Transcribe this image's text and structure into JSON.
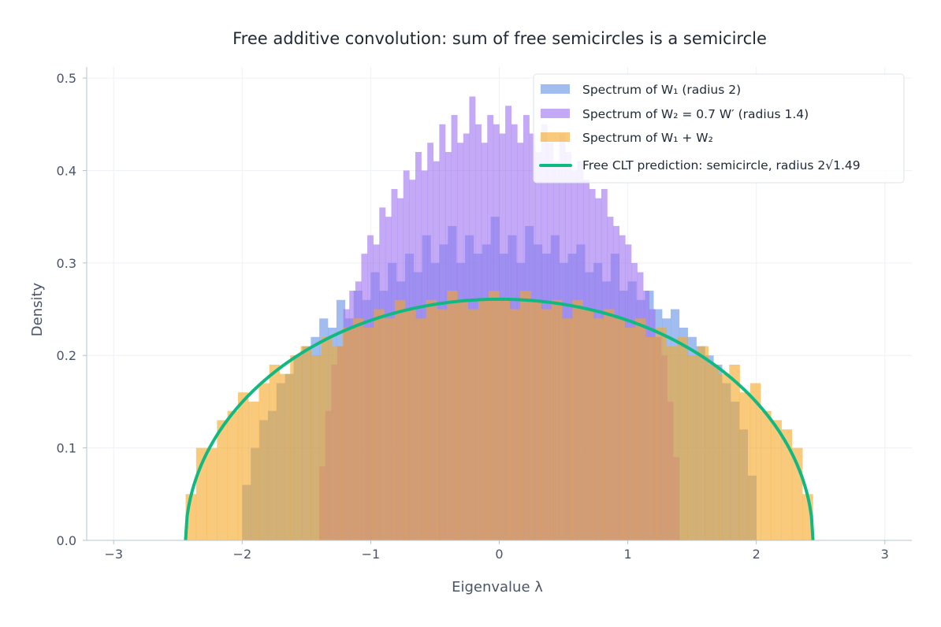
{
  "chart_data": {
    "type": "bar",
    "title": "Free additive convolution: sum of free semicircles is a semicircle",
    "xlabel": "Eigenvalue λ",
    "ylabel": "Density",
    "xlim": [
      -3.21,
      3.21
    ],
    "ylim": [
      0,
      0.512
    ],
    "xticks": [
      "−3",
      "−2",
      "−1",
      "0",
      "1",
      "2",
      "3"
    ],
    "xtick_values": [
      -3,
      -2,
      -1,
      0,
      1,
      2,
      3
    ],
    "yticks": [
      "0.0",
      "0.1",
      "0.2",
      "0.3",
      "0.4",
      "0.5"
    ],
    "ytick_values": [
      0,
      0.1,
      0.2,
      0.3,
      0.4,
      0.5
    ],
    "grid": true,
    "legend_position": "top-right",
    "series": [
      {
        "name": "Spectrum of W₁ (radius 2)",
        "kind": "histogram",
        "color": "#6f9ae8",
        "bin_range": [
          -2.0,
          2.0
        ],
        "values": [
          0.06,
          0.1,
          0.13,
          0.14,
          0.17,
          0.18,
          0.2,
          0.21,
          0.22,
          0.24,
          0.23,
          0.26,
          0.24,
          0.27,
          0.26,
          0.29,
          0.27,
          0.3,
          0.28,
          0.31,
          0.29,
          0.33,
          0.3,
          0.32,
          0.34,
          0.3,
          0.33,
          0.31,
          0.32,
          0.35,
          0.31,
          0.33,
          0.3,
          0.34,
          0.32,
          0.31,
          0.33,
          0.3,
          0.31,
          0.32,
          0.29,
          0.3,
          0.28,
          0.31,
          0.27,
          0.28,
          0.26,
          0.27,
          0.25,
          0.24,
          0.25,
          0.23,
          0.22,
          0.21,
          0.2,
          0.19,
          0.17,
          0.15,
          0.12,
          0.07
        ]
      },
      {
        "name": "Spectrum of W₂ = 0.7 W′ (radius 1.4)",
        "kind": "histogram",
        "color": "#9d6ff0",
        "bin_range": [
          -1.4,
          1.4
        ],
        "values": [
          0.08,
          0.14,
          0.19,
          0.21,
          0.25,
          0.27,
          0.28,
          0.31,
          0.33,
          0.32,
          0.36,
          0.35,
          0.38,
          0.37,
          0.4,
          0.39,
          0.42,
          0.4,
          0.43,
          0.41,
          0.45,
          0.42,
          0.46,
          0.43,
          0.44,
          0.48,
          0.45,
          0.43,
          0.46,
          0.45,
          0.44,
          0.47,
          0.45,
          0.43,
          0.46,
          0.44,
          0.42,
          0.45,
          0.43,
          0.41,
          0.44,
          0.42,
          0.4,
          0.41,
          0.39,
          0.38,
          0.37,
          0.38,
          0.35,
          0.34,
          0.33,
          0.32,
          0.3,
          0.29,
          0.27,
          0.25,
          0.22,
          0.2,
          0.15,
          0.09
        ]
      },
      {
        "name": "Spectrum of W₁ + W₂",
        "kind": "histogram",
        "color": "#f5a623",
        "bin_range": [
          -2.44,
          2.44
        ],
        "values": [
          0.05,
          0.1,
          0.1,
          0.13,
          0.14,
          0.16,
          0.15,
          0.17,
          0.19,
          0.18,
          0.2,
          0.21,
          0.2,
          0.22,
          0.21,
          0.23,
          0.24,
          0.23,
          0.25,
          0.24,
          0.26,
          0.25,
          0.24,
          0.26,
          0.25,
          0.27,
          0.26,
          0.25,
          0.26,
          0.27,
          0.26,
          0.25,
          0.27,
          0.26,
          0.25,
          0.26,
          0.24,
          0.26,
          0.25,
          0.24,
          0.25,
          0.24,
          0.23,
          0.24,
          0.22,
          0.23,
          0.21,
          0.22,
          0.2,
          0.21,
          0.19,
          0.18,
          0.19,
          0.16,
          0.17,
          0.14,
          0.13,
          0.12,
          0.1,
          0.05
        ]
      },
      {
        "name": "Free CLT prediction: semicircle, radius 2√1.49",
        "kind": "line",
        "color": "#10b981",
        "radius": 2.441
      }
    ]
  }
}
